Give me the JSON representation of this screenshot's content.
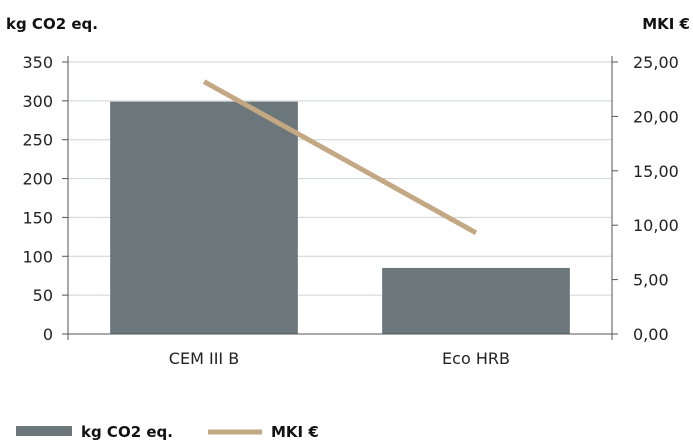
{
  "chart_data": {
    "type": "bar",
    "categories": [
      "CEM III B",
      "Eco HRB"
    ],
    "series": [
      {
        "name": "kg CO2 eq.",
        "type": "bar",
        "axis": "left",
        "values": [
          299,
          85
        ],
        "color": "#6b777b"
      },
      {
        "name": "MKI €",
        "type": "line",
        "axis": "right",
        "values": [
          23.2,
          9.3
        ],
        "color": "#c4a884"
      }
    ],
    "ylabel": "kg CO2 eq.",
    "y2label": "MKI €",
    "ylim": [
      0,
      350
    ],
    "y2lim": [
      0,
      25
    ],
    "yticks": [
      "0",
      "50",
      "100",
      "150",
      "200",
      "250",
      "300",
      "350"
    ],
    "y2ticks": [
      "0,00",
      "5,00",
      "10,00",
      "15,00",
      "20,00",
      "25,00"
    ],
    "grid": true,
    "legend_position": "bottom-left",
    "legend": [
      "kg CO2 eq.",
      "MKI €"
    ]
  }
}
